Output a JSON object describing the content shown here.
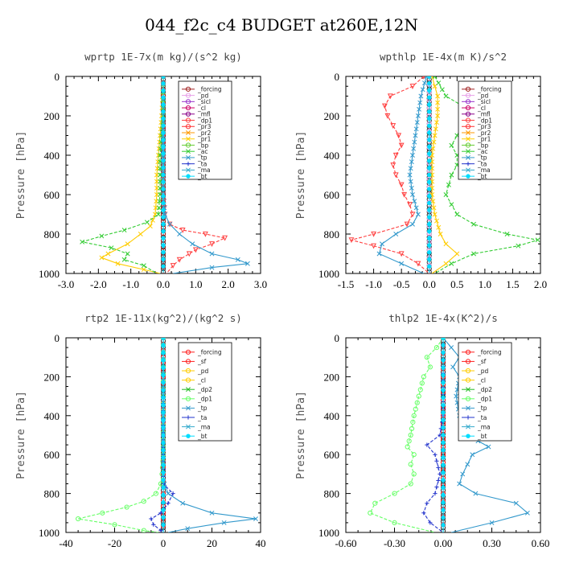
{
  "figure_title": "044_f2c_c4  BUDGET at260E,12N",
  "colors": {
    "forcing": "#a02020",
    "sf": "#ff2020",
    "pd": "#e8a0e8",
    "sicl": "#9933cc",
    "cl": "#cc0066",
    "mfl": "#880088",
    "dp1": "#ff4040",
    "dp2": "#22bb22",
    "pr3": "#ff3030",
    "pr2": "#ff9900",
    "pr1": "#ffcc00",
    "bp": "#66cc33",
    "ac": "#33cc33",
    "tp": "#3399cc",
    "ta": "#2233cc",
    "ma": "#33aacc",
    "bt": "#00ddff",
    "forcing_rtp": "#ff2020",
    "pd_rtp": "#ffcc00",
    "cl_rtp": "#ffcc00",
    "dp1_rtp": "#66ff66"
  },
  "chart_data": [
    {
      "type": "line",
      "title": "wprtp  1E-7x(m kg)/(s^2 kg)",
      "ylabel": "Pressure [hPa]",
      "xlim": [
        -3.0,
        3.0
      ],
      "ylim": [
        1000,
        0
      ],
      "xticks": [
        -3.0,
        -2.0,
        -1.0,
        0.0,
        1.0,
        2.0,
        3.0
      ],
      "xtick_labels": [
        "-3.0",
        "-2.0",
        "-1.0",
        "0.0",
        "1.0",
        "2.0",
        "3.0"
      ],
      "yticks": [
        0,
        200,
        400,
        600,
        800,
        1000
      ],
      "ytick_labels": [
        "0",
        "200",
        "400",
        "600",
        "800",
        "1000"
      ],
      "legend": [
        "_forcing",
        "_pd",
        "_sicl",
        "_cl",
        "_mfl",
        "_dp1",
        "_pr3",
        "_pr2",
        "_pr1",
        "_bp",
        "_ac",
        "_tp",
        "_ta",
        "_ma",
        "_bt"
      ],
      "legend_position": "top-right",
      "series": [
        {
          "name": "_forcing",
          "color_key": "forcing",
          "marker": "circle",
          "pressure": [
            0,
            100,
            200,
            300,
            400,
            500,
            600,
            700,
            800,
            900,
            1000
          ],
          "values": [
            0,
            0,
            0,
            0,
            0,
            0,
            0,
            0,
            0,
            0,
            0
          ]
        },
        {
          "name": "_dp1",
          "color_key": "dp1",
          "marker": "tri",
          "pressure": [
            0,
            600,
            700,
            750,
            780,
            800,
            820,
            850,
            880,
            900,
            930,
            960,
            1000
          ],
          "values": [
            0,
            0,
            0.05,
            0.2,
            0.6,
            1.3,
            1.9,
            1.5,
            1.0,
            0.8,
            0.5,
            0.3,
            0.1
          ]
        },
        {
          "name": "_pr1",
          "color_key": "pr1",
          "marker": "x",
          "pressure": [
            0,
            200,
            300,
            400,
            500,
            600,
            700,
            760,
            800,
            850,
            900,
            920,
            950,
            980,
            1000
          ],
          "values": [
            0,
            -0.05,
            -0.1,
            -0.15,
            -0.2,
            -0.2,
            -0.25,
            -0.4,
            -0.7,
            -1.1,
            -1.7,
            -1.9,
            -1.4,
            -0.6,
            -0.1
          ]
        },
        {
          "name": "_ac",
          "color_key": "ac",
          "marker": "x",
          "pressure": [
            0,
            200,
            300,
            400,
            500,
            600,
            700,
            740,
            780,
            810,
            840,
            870,
            900,
            930,
            960,
            1000
          ],
          "values": [
            0,
            0,
            -0.05,
            -0.1,
            -0.1,
            -0.1,
            -0.15,
            -0.5,
            -1.2,
            -1.9,
            -2.5,
            -1.6,
            -1.1,
            -1.2,
            -0.6,
            -0.2
          ]
        },
        {
          "name": "_tp",
          "color_key": "tp",
          "marker": "x",
          "pressure": [
            0,
            600,
            700,
            750,
            800,
            850,
            900,
            930,
            950,
            970,
            1000
          ],
          "values": [
            0,
            0,
            0.05,
            0.2,
            0.5,
            0.9,
            1.5,
            2.3,
            2.6,
            1.5,
            0.3
          ]
        },
        {
          "name": "_bt",
          "color_key": "bt",
          "marker": "star",
          "pressure": [
            0,
            500,
            1000
          ],
          "values": [
            0,
            0,
            0
          ]
        }
      ]
    },
    {
      "type": "line",
      "title": "wpthlp  1E-4x(m K)/s^2",
      "ylabel": "Pressure [hPa]",
      "xlim": [
        -1.5,
        2.0
      ],
      "ylim": [
        1000,
        0
      ],
      "xticks": [
        -1.5,
        -1.0,
        -0.5,
        0.0,
        0.5,
        1.0,
        1.5,
        2.0
      ],
      "xtick_labels": [
        "-1.5",
        "-1.0",
        "-0.5",
        "0.0",
        "0.5",
        "1.0",
        "1.5",
        "2.0"
      ],
      "yticks": [
        0,
        200,
        400,
        600,
        800,
        1000
      ],
      "ytick_labels": [
        "0",
        "200",
        "400",
        "600",
        "800",
        "1000"
      ],
      "legend": [
        "_forcing",
        "_pd",
        "_sicl",
        "_cl",
        "_mfl",
        "_dp1",
        "_pr3",
        "_pr2",
        "_pr1",
        "_bp",
        "_ac",
        "_tp",
        "_ta",
        "_ma",
        "_bt"
      ],
      "legend_position": "top-right",
      "series": [
        {
          "name": "_forcing",
          "color_key": "pd",
          "marker": "circle",
          "pressure": [
            0,
            200,
            400,
            600,
            800,
            1000
          ],
          "values": [
            0,
            0,
            0,
            0,
            0,
            0
          ]
        },
        {
          "name": "_dp1",
          "color_key": "dp1",
          "marker": "tri",
          "pressure": [
            0,
            50,
            100,
            150,
            200,
            250,
            300,
            350,
            400,
            450,
            500,
            550,
            600,
            650,
            700,
            750,
            800,
            830,
            860,
            900,
            950,
            1000
          ],
          "values": [
            -0.1,
            -0.3,
            -0.7,
            -0.8,
            -0.75,
            -0.65,
            -0.55,
            -0.5,
            -0.6,
            -0.65,
            -0.6,
            -0.5,
            -0.45,
            -0.35,
            -0.3,
            -0.4,
            -1.0,
            -1.4,
            -1.0,
            -0.5,
            -0.2,
            0.0
          ]
        },
        {
          "name": "_pr1",
          "color_key": "pr1",
          "marker": "x",
          "pressure": [
            0,
            50,
            100,
            200,
            300,
            400,
            500,
            600,
            700,
            800,
            850,
            900,
            950,
            1000
          ],
          "values": [
            0.05,
            0.1,
            0.15,
            0.15,
            0.1,
            0.05,
            0.05,
            0.05,
            0.1,
            0.2,
            0.3,
            0.5,
            0.3,
            0.05
          ]
        },
        {
          "name": "_ac",
          "color_key": "ac",
          "marker": "x",
          "pressure": [
            0,
            100,
            150,
            200,
            250,
            300,
            350,
            400,
            450,
            500,
            550,
            600,
            650,
            700,
            750,
            800,
            830,
            860,
            900,
            950,
            1000
          ],
          "values": [
            0.1,
            0.3,
            0.6,
            0.7,
            0.6,
            0.5,
            0.4,
            0.5,
            0.5,
            0.4,
            0.35,
            0.3,
            0.4,
            0.5,
            0.8,
            1.4,
            1.95,
            1.6,
            0.8,
            0.4,
            0.1
          ]
        },
        {
          "name": "_tp",
          "color_key": "tp",
          "marker": "x",
          "pressure": [
            0,
            100,
            200,
            300,
            400,
            500,
            600,
            700,
            750,
            800,
            850,
            900,
            950,
            1000
          ],
          "values": [
            -0.05,
            -0.15,
            -0.2,
            -0.25,
            -0.3,
            -0.35,
            -0.3,
            -0.2,
            -0.3,
            -0.6,
            -0.85,
            -0.9,
            -0.5,
            -0.1
          ]
        },
        {
          "name": "_bt",
          "color_key": "bt",
          "marker": "star",
          "pressure": [
            0,
            500,
            1000
          ],
          "values": [
            0,
            0,
            0
          ]
        }
      ]
    },
    {
      "type": "line",
      "title": "rtp2  1E-11x(kg^2)/(kg^2 s)",
      "ylabel": "Pressure [hPa]",
      "xlim": [
        -40,
        40
      ],
      "ylim": [
        1000,
        0
      ],
      "xticks": [
        -40,
        -20,
        0,
        20,
        40
      ],
      "xtick_labels": [
        "-40",
        "-20",
        "0",
        "20",
        "40"
      ],
      "yticks": [
        0,
        200,
        400,
        600,
        800,
        1000
      ],
      "ytick_labels": [
        "0",
        "200",
        "400",
        "600",
        "800",
        "1000"
      ],
      "legend": [
        "_forcing",
        "_sf",
        "_pd",
        "_cl",
        "_dp2",
        "_dp1",
        "_tp",
        "_ta",
        "_ma",
        "_bt"
      ],
      "legend_position": "top-right",
      "series": [
        {
          "name": "_forcing",
          "color_key": "forcing_rtp",
          "marker": "circle",
          "pressure": [
            0,
            100,
            200,
            300,
            400,
            500,
            600,
            700,
            800,
            900,
            1000
          ],
          "values": [
            0,
            0,
            0,
            0,
            0,
            0,
            0,
            0,
            0,
            0,
            0
          ]
        },
        {
          "name": "_dp1",
          "color_key": "dp1_rtp",
          "marker": "circle",
          "pressure": [
            0,
            600,
            700,
            750,
            800,
            840,
            870,
            900,
            930,
            960,
            990,
            1000
          ],
          "values": [
            0,
            0,
            -0.5,
            -1,
            -3,
            -8,
            -15,
            -25,
            -35,
            -20,
            -8,
            -2
          ]
        },
        {
          "name": "_tp",
          "color_key": "tp",
          "marker": "x",
          "pressure": [
            0,
            700,
            750,
            800,
            850,
            900,
            930,
            950,
            980,
            1000
          ],
          "values": [
            0,
            0,
            0.5,
            2,
            8,
            20,
            38,
            25,
            10,
            2
          ]
        },
        {
          "name": "_ta",
          "color_key": "ta",
          "marker": "plus",
          "pressure": [
            0,
            750,
            800,
            850,
            900,
            930,
            960,
            990,
            1000
          ],
          "values": [
            0,
            0,
            4,
            2,
            -1,
            -5,
            -4,
            -1,
            0
          ]
        },
        {
          "name": "_bt",
          "color_key": "bt",
          "marker": "star",
          "pressure": [
            0,
            500,
            1000
          ],
          "values": [
            0,
            0,
            0
          ]
        }
      ]
    },
    {
      "type": "line",
      "title": "thlp2  1E-4x(K^2)/s",
      "ylabel": "Pressure [hPa]",
      "xlim": [
        -0.6,
        0.6
      ],
      "ylim": [
        1000,
        0
      ],
      "xticks": [
        -0.6,
        -0.3,
        0.0,
        0.3,
        0.6
      ],
      "xtick_labels": [
        "-0.60",
        "-0.30",
        "0.00",
        "0.30",
        "0.60"
      ],
      "yticks": [
        0,
        200,
        400,
        600,
        800,
        1000
      ],
      "ytick_labels": [
        "0",
        "200",
        "400",
        "600",
        "800",
        "1000"
      ],
      "legend": [
        "_forcing",
        "_sf",
        "_pd",
        "_cl",
        "_dp2",
        "_dp1",
        "_tp",
        "_ta",
        "_ma",
        "_bt"
      ],
      "legend_position": "top-right",
      "series": [
        {
          "name": "_forcing",
          "color_key": "forcing_rtp",
          "marker": "circle",
          "pressure": [
            0,
            200,
            400,
            600,
            800,
            1000
          ],
          "values": [
            0,
            0,
            0,
            0,
            0,
            0
          ]
        },
        {
          "name": "_dp1",
          "color_key": "dp1_rtp",
          "marker": "circle",
          "pressure": [
            0,
            50,
            100,
            150,
            200,
            300,
            400,
            500,
            560,
            600,
            650,
            700,
            750,
            800,
            850,
            900,
            950,
            1000
          ],
          "values": [
            0,
            -0.04,
            -0.1,
            -0.08,
            -0.12,
            -0.15,
            -0.18,
            -0.2,
            -0.22,
            -0.18,
            -0.2,
            -0.18,
            -0.2,
            -0.3,
            -0.42,
            -0.45,
            -0.3,
            -0.05
          ]
        },
        {
          "name": "_tp",
          "color_key": "tp",
          "marker": "x",
          "pressure": [
            0,
            50,
            100,
            150,
            200,
            300,
            400,
            500,
            560,
            600,
            650,
            700,
            750,
            800,
            850,
            900,
            950,
            1000
          ],
          "values": [
            0,
            0.05,
            0.1,
            0.06,
            0.1,
            0.08,
            0.1,
            0.15,
            0.28,
            0.18,
            0.15,
            0.12,
            0.1,
            0.2,
            0.45,
            0.52,
            0.3,
            0.05
          ]
        },
        {
          "name": "_ta",
          "color_key": "ta",
          "marker": "plus",
          "pressure": [
            0,
            400,
            500,
            550,
            600,
            700,
            800,
            850,
            900,
            950,
            1000
          ],
          "values": [
            0,
            0,
            -0.02,
            -0.1,
            -0.05,
            -0.02,
            -0.05,
            -0.1,
            -0.12,
            -0.08,
            0
          ]
        },
        {
          "name": "_bt",
          "color_key": "bt",
          "marker": "star",
          "pressure": [
            0,
            500,
            1000
          ],
          "values": [
            0,
            0,
            0
          ]
        }
      ]
    }
  ]
}
